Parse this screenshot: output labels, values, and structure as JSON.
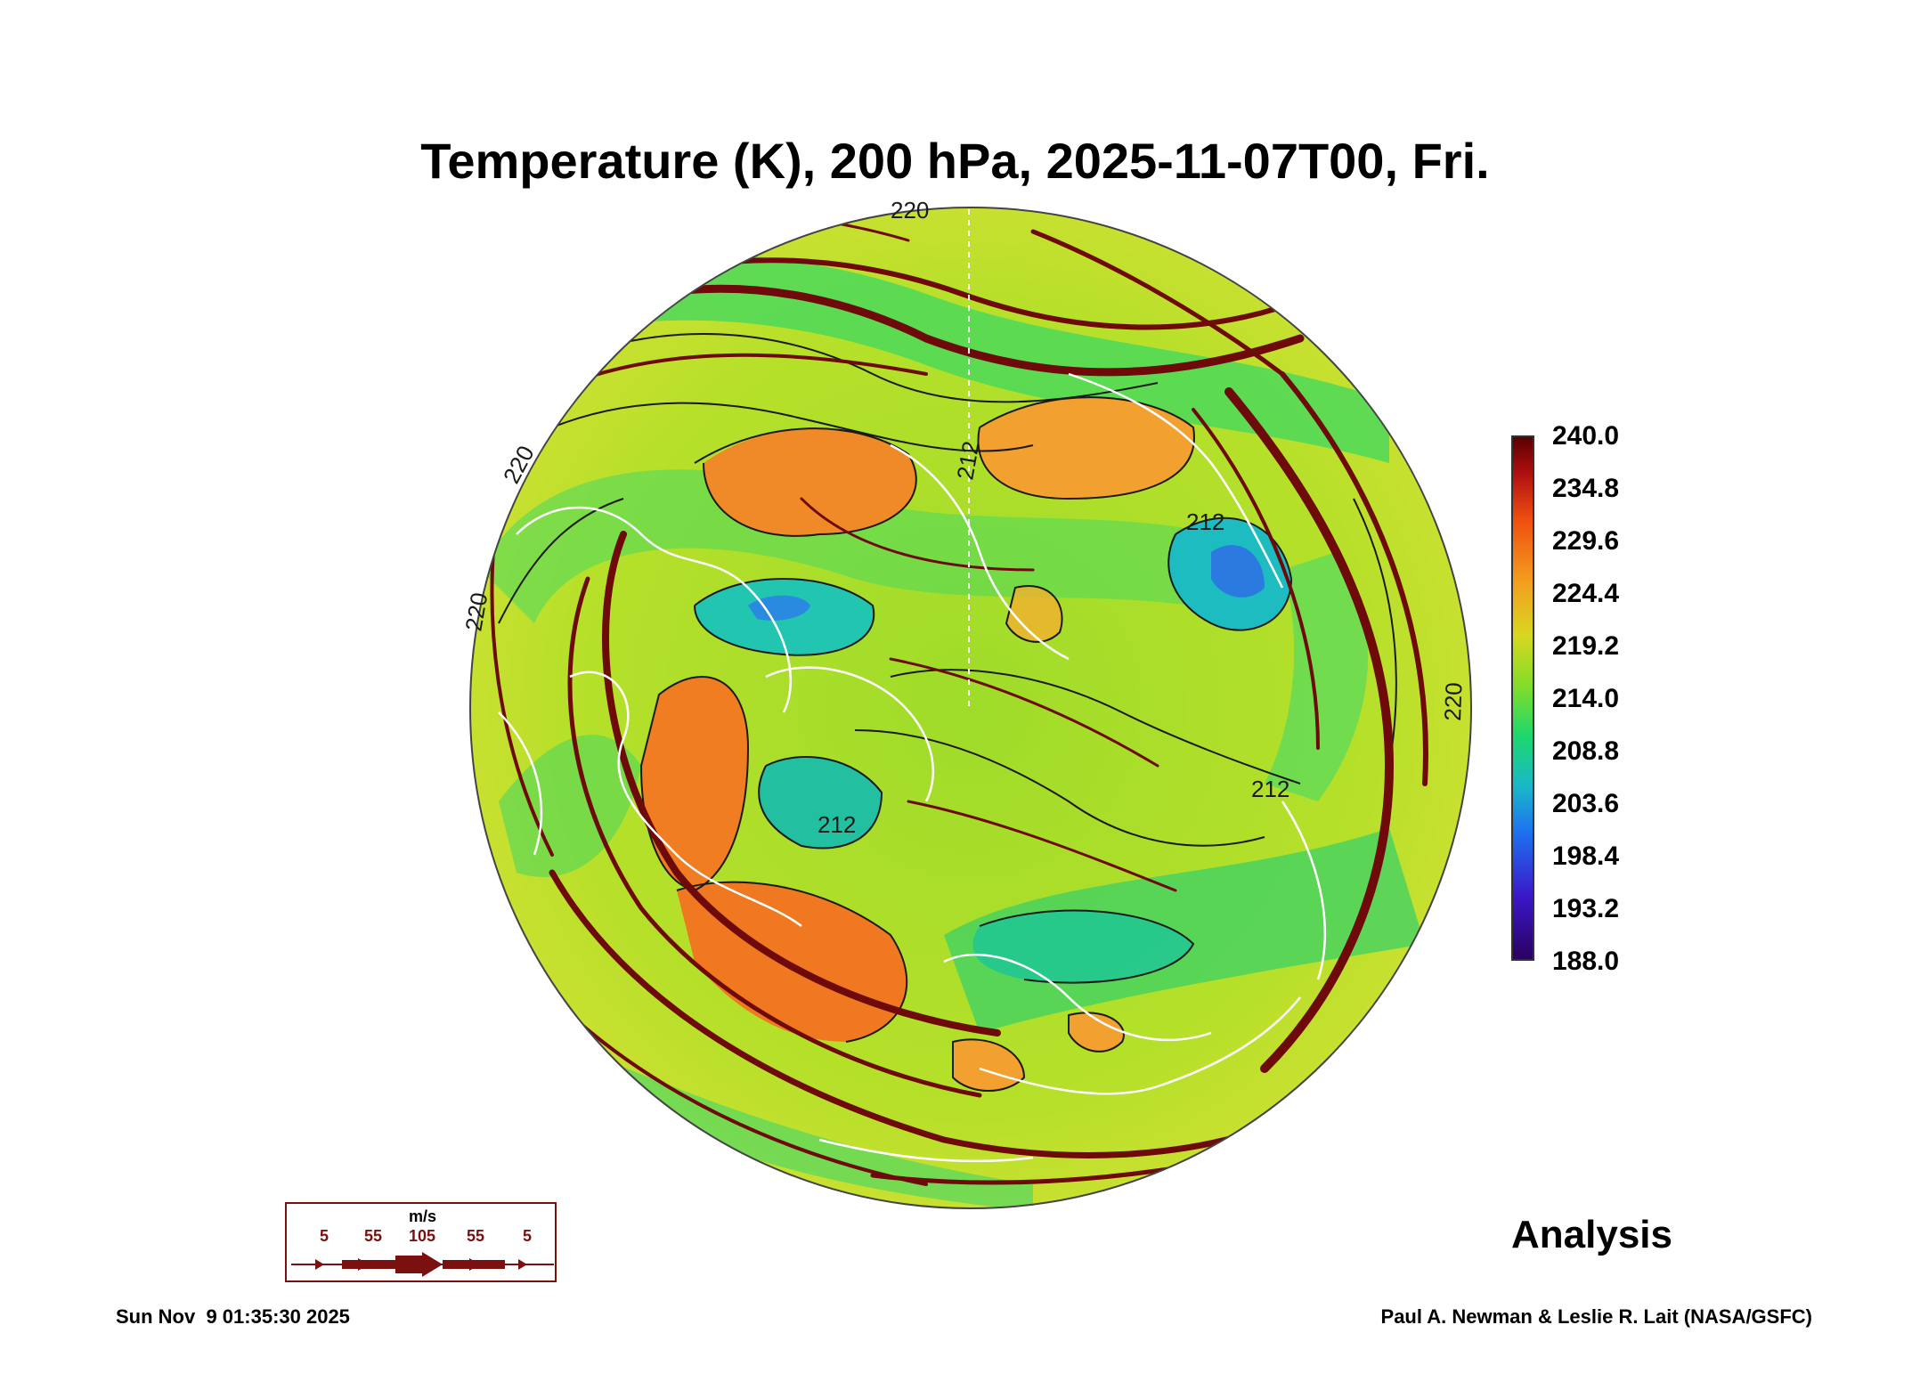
{
  "title": "Temperature (K), 200 hPa, 2025-11-07T00, Fri.",
  "colorbar": {
    "labels": [
      "240.0",
      "234.8",
      "229.6",
      "224.4",
      "219.2",
      "214.0",
      "208.8",
      "203.6",
      "198.4",
      "193.2",
      "188.0"
    ],
    "colors": [
      "#5a0000",
      "#b01010",
      "#f05010",
      "#f2a020",
      "#d8d820",
      "#7fdd2a",
      "#1ed86a",
      "#18b8c8",
      "#1e6ff0",
      "#3b18c8",
      "#2a0060"
    ]
  },
  "contour_labels": [
    "220",
    "220",
    "220",
    "212",
    "212",
    "212",
    "212",
    "220"
  ],
  "wind_legend": {
    "unit": "m/s",
    "ticks": [
      "5",
      "55",
      "105",
      "55",
      "5"
    ],
    "color": "#7a1010"
  },
  "analysis_label": "Analysis",
  "timestamp": "Sun Nov  9 01:35:30 2025",
  "credit": "Paul A. Newman & Leslie R. Lait (NASA/GSFC)"
}
